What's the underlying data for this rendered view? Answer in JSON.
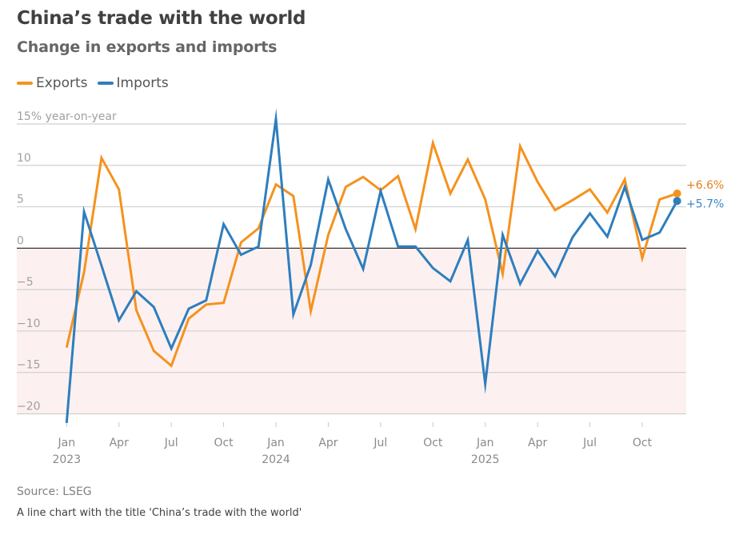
{
  "header": {
    "title": "China’s trade with the world",
    "subtitle": "Change in exports and imports"
  },
  "footer": {
    "source": "Source: LSEG",
    "description": "A line chart with the title 'China’s trade with the world'"
  },
  "chart_data": {
    "type": "line",
    "title": "China’s trade with the world",
    "subtitle": "Change in exports and imports",
    "ylabel": "15% year-on-year",
    "xlabel": "",
    "ylim": [
      -20,
      15
    ],
    "yticks": [
      15,
      10,
      5,
      0,
      -5,
      -10,
      -15,
      -20
    ],
    "ytick_labels": [
      "15% year-on-year",
      "10",
      "5",
      "0",
      "−5",
      "−10",
      "−15",
      "−20"
    ],
    "negative_region_shaded": true,
    "grid": true,
    "legend_position": "top-left",
    "x": [
      "2023-01",
      "2023-02",
      "2023-03",
      "2023-04",
      "2023-05",
      "2023-06",
      "2023-07",
      "2023-08",
      "2023-09",
      "2023-10",
      "2023-11",
      "2023-12",
      "2024-01",
      "2024-02",
      "2024-03",
      "2024-04",
      "2024-05",
      "2024-06",
      "2024-07",
      "2024-08",
      "2024-09",
      "2024-10",
      "2024-11",
      "2024-12",
      "2025-01",
      "2025-02",
      "2025-03",
      "2025-04",
      "2025-05",
      "2025-06",
      "2025-07",
      "2025-08",
      "2025-09",
      "2025-10",
      "2025-11",
      "2025-12"
    ],
    "xticks": [
      {
        "month_index": 0,
        "label": "Jan",
        "year": "2023"
      },
      {
        "month_index": 3,
        "label": "Apr",
        "year": ""
      },
      {
        "month_index": 6,
        "label": "Jul",
        "year": ""
      },
      {
        "month_index": 9,
        "label": "Oct",
        "year": ""
      },
      {
        "month_index": 12,
        "label": "Jan",
        "year": "2024"
      },
      {
        "month_index": 15,
        "label": "Apr",
        "year": ""
      },
      {
        "month_index": 18,
        "label": "Jul",
        "year": ""
      },
      {
        "month_index": 21,
        "label": "Oct",
        "year": ""
      },
      {
        "month_index": 24,
        "label": "Jan",
        "year": "2025"
      },
      {
        "month_index": 27,
        "label": "Apr",
        "year": ""
      },
      {
        "month_index": 30,
        "label": "Jul",
        "year": ""
      },
      {
        "month_index": 33,
        "label": "Oct",
        "year": ""
      }
    ],
    "series": [
      {
        "name": "Exports",
        "color": "#F5921E",
        "label_color": "#E5821A",
        "end_label": "+6.6%",
        "values": [
          -12.0,
          -2.9,
          10.9,
          7.1,
          -7.5,
          -12.4,
          -14.2,
          -8.5,
          -6.8,
          -6.6,
          0.7,
          2.4,
          7.7,
          6.3,
          -7.6,
          1.6,
          7.4,
          8.6,
          7.0,
          8.7,
          2.3,
          12.7,
          6.6,
          10.7,
          5.9,
          -3.1,
          12.3,
          8.0,
          4.6,
          5.8,
          7.1,
          4.3,
          8.3,
          -1.2,
          5.9,
          6.6
        ]
      },
      {
        "name": "Imports",
        "color": "#2E7EBE",
        "label_color": "#3B87C6",
        "end_label": "+5.7%",
        "values": [
          -21.1,
          4.4,
          -2.1,
          -8.7,
          -5.2,
          -7.1,
          -12.1,
          -7.3,
          -6.3,
          2.9,
          -0.8,
          0.2,
          15.6,
          -8.0,
          -2.0,
          8.3,
          2.3,
          -2.5,
          6.9,
          0.2,
          0.2,
          -2.4,
          -4.0,
          1.0,
          -16.4,
          1.6,
          -4.3,
          -0.3,
          -3.4,
          1.3,
          4.2,
          1.4,
          7.4,
          1.0,
          1.9,
          5.7
        ]
      }
    ]
  }
}
